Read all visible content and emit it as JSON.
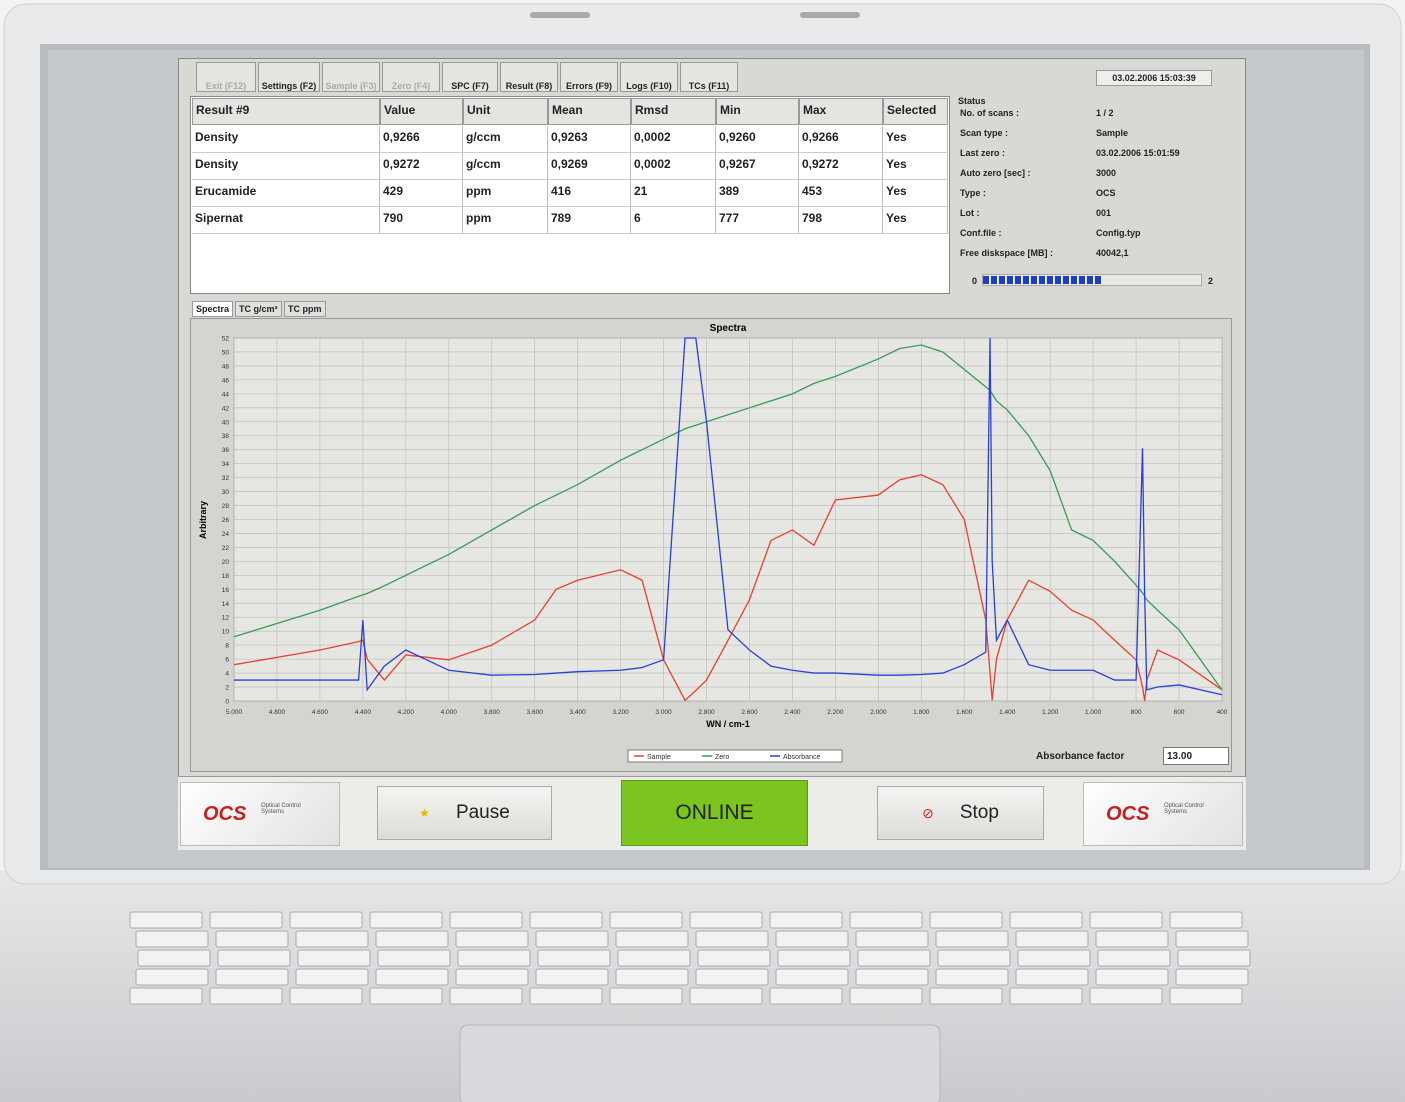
{
  "toolbar": {
    "buttons": [
      {
        "label": "Exit (F12)",
        "enabled": false
      },
      {
        "label": "Settings (F2)",
        "enabled": true
      },
      {
        "label": "Sample (F3)",
        "enabled": false
      },
      {
        "label": "Zero (F4)",
        "enabled": false
      },
      {
        "label": "SPC (F7)",
        "enabled": true
      },
      {
        "label": "Result (F8)",
        "enabled": true
      },
      {
        "label": "Errors (F9)",
        "enabled": true
      },
      {
        "label": "Logs (F10)",
        "enabled": true
      },
      {
        "label": "TCs (F11)",
        "enabled": true
      }
    ],
    "datetime": "03.02.2006 15:03:39"
  },
  "results_table": {
    "header": [
      "Result #9",
      "Value",
      "Unit",
      "Mean",
      "Rmsd",
      "Min",
      "Max",
      "Selected"
    ],
    "rows": [
      [
        "Density",
        "0,9266",
        "g/ccm",
        "0,9263",
        "0,0002",
        "0,9260",
        "0,9266",
        "Yes"
      ],
      [
        "Density",
        "0,9272",
        "g/ccm",
        "0,9269",
        "0,0002",
        "0,9267",
        "0,9272",
        "Yes"
      ],
      [
        "Erucamide",
        "429",
        "ppm",
        "416",
        "21",
        "389",
        "453",
        "Yes"
      ],
      [
        "Sipernat",
        "790",
        "ppm",
        "789",
        "6",
        "777",
        "798",
        "Yes"
      ]
    ]
  },
  "status": {
    "title": "Status",
    "rows": [
      [
        "No. of scans :",
        "1 / 2"
      ],
      [
        "Scan type :",
        "Sample"
      ],
      [
        "Last zero :",
        "03.02.2006 15:01:59"
      ],
      [
        "Auto zero [sec] :",
        "3000"
      ],
      [
        "Type :",
        "OCS"
      ],
      [
        "Lot :",
        "001"
      ],
      [
        "Conf.file :",
        "Config.typ"
      ],
      [
        "Free diskspace [MB] :",
        "40042,1"
      ]
    ],
    "progress": {
      "min": 0,
      "max": 2,
      "value": 1.1
    }
  },
  "tabs": [
    "Spectra",
    "TC g/cm³",
    "TC ppm"
  ],
  "chart_data": {
    "type": "line",
    "title": "Spectra",
    "xlabel": "WN / cm-1",
    "ylabel": "Arbitrary",
    "x": [
      5000,
      4600,
      4420,
      4400,
      4380,
      4300,
      4200,
      4000,
      3800,
      3600,
      3500,
      3400,
      3200,
      3100,
      3000,
      2900,
      2850,
      2800,
      2700,
      2600,
      2500,
      2400,
      2300,
      2200,
      2000,
      1900,
      1800,
      1700,
      1600,
      1500,
      1480,
      1470,
      1450,
      1400,
      1300,
      1200,
      1100,
      1000,
      900,
      800,
      770,
      760,
      750,
      700,
      600,
      400
    ],
    "series": [
      {
        "name": "Sample",
        "color": "#e8402f",
        "values": [
          5.2,
          7.3,
          8.5,
          8.7,
          6,
          3,
          6.6,
          5.9,
          8,
          11.6,
          16,
          17.3,
          18.8,
          17.3,
          5.9,
          0.1,
          1.5,
          3,
          8.7,
          14.5,
          23,
          24.5,
          22.3,
          28.8,
          29.5,
          31.7,
          32.4,
          31,
          26,
          11.6,
          4,
          0.1,
          6,
          11.6,
          17.3,
          15.7,
          13,
          11.6,
          8.7,
          5.9,
          2,
          0,
          3,
          7.3,
          5.9,
          1.6
        ]
      },
      {
        "name": "Zero",
        "color": "#3a9a55",
        "values": [
          9.2,
          13,
          15,
          15.2,
          15.4,
          16.5,
          18,
          21,
          24.5,
          28,
          29.5,
          31,
          34.5,
          36,
          37.5,
          39,
          39.5,
          40,
          41,
          42,
          43,
          44,
          45.5,
          46.5,
          49,
          50.5,
          51,
          50,
          47.5,
          45,
          44.5,
          44,
          43,
          41.7,
          38,
          33,
          24.5,
          23,
          20,
          16.6,
          15.5,
          15,
          14.5,
          13,
          10.2,
          1.6
        ]
      },
      {
        "name": "Absorbance",
        "color": "#2b3fd6",
        "values": [
          3,
          3,
          3,
          11.6,
          1.6,
          5,
          7.3,
          4.4,
          3.7,
          3.8,
          4,
          4.2,
          4.4,
          4.8,
          5.9,
          52,
          52,
          40,
          10.2,
          7.3,
          5,
          4.4,
          4,
          4,
          3.7,
          3.7,
          3.8,
          4,
          5.2,
          7,
          52,
          20,
          8.7,
          11.6,
          5.2,
          4.4,
          4.4,
          4.4,
          3,
          3,
          36.2,
          15,
          1.6,
          2,
          2.3,
          0.9
        ]
      }
    ],
    "xlim": [
      5000,
      400
    ],
    "ylim": [
      0,
      52
    ],
    "xticks": [
      {
        "value": 5000,
        "label": "5.000"
      },
      {
        "value": 4800,
        "label": "4.800"
      },
      {
        "value": 4600,
        "label": "4.600"
      },
      {
        "value": 4400,
        "label": "4.400"
      },
      {
        "value": 4200,
        "label": "4.200"
      },
      {
        "value": 4000,
        "label": "4.000"
      },
      {
        "value": 3800,
        "label": "3.800"
      },
      {
        "value": 3600,
        "label": "3.600"
      },
      {
        "value": 3400,
        "label": "3.400"
      },
      {
        "value": 3200,
        "label": "3.200"
      },
      {
        "value": 3000,
        "label": "3.000"
      },
      {
        "value": 2800,
        "label": "2.800"
      },
      {
        "value": 2600,
        "label": "2.600"
      },
      {
        "value": 2400,
        "label": "2.400"
      },
      {
        "value": 2200,
        "label": "2.200"
      },
      {
        "value": 2000,
        "label": "2.000"
      },
      {
        "value": 1800,
        "label": "1.800"
      },
      {
        "value": 1600,
        "label": "1.600"
      },
      {
        "value": 1400,
        "label": "1.400"
      },
      {
        "value": 1200,
        "label": "1.200"
      },
      {
        "value": 1000,
        "label": "1.000"
      },
      800,
      600,
      400
    ],
    "yticks": [
      0,
      2,
      4,
      6,
      8,
      10,
      12,
      14,
      16,
      18,
      20,
      22,
      24,
      26,
      28,
      30,
      32,
      34,
      36,
      38,
      40,
      42,
      44,
      46,
      48,
      50,
      52
    ],
    "grid": true
  },
  "absorbance_factor": {
    "label": "Absorbance factor",
    "value": "13.00"
  },
  "controls": {
    "pause": "Pause",
    "state": "ONLINE",
    "stop": "Stop"
  },
  "logo": {
    "name": "OCS",
    "tagline": "Optical Control Systems"
  }
}
